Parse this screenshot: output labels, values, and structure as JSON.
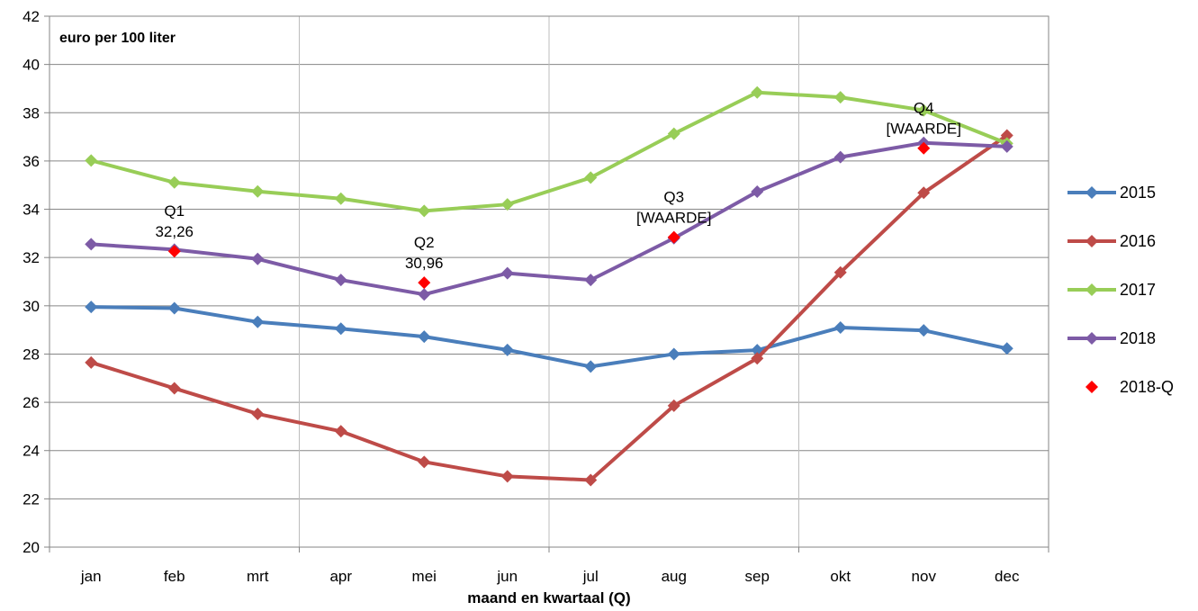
{
  "chart_data": {
    "type": "line",
    "unit_label": "euro per 100 liter",
    "xlabel": "maand en kwartaal (Q)",
    "ylabel": "",
    "ylim": [
      20,
      42
    ],
    "y_ticks": [
      "20",
      "22",
      "24",
      "26",
      "28",
      "30",
      "32",
      "34",
      "36",
      "38",
      "40",
      "42"
    ],
    "categories": [
      "jan",
      "feb",
      "mrt",
      "apr",
      "mei",
      "jun",
      "jul",
      "aug",
      "sep",
      "okt",
      "nov",
      "dec"
    ],
    "grid": "horizontal lines at every tick, vertical lines per quarter",
    "legend_position": "right",
    "series": [
      {
        "name": "2015",
        "color": "#4a7ebb",
        "marker": "diamond",
        "values": [
          29.95,
          29.9,
          29.33,
          29.05,
          28.72,
          28.17,
          27.48,
          28.0,
          28.16,
          29.1,
          28.98,
          28.23
        ]
      },
      {
        "name": "2016",
        "color": "#be4b48",
        "marker": "diamond",
        "values": [
          27.65,
          26.58,
          25.52,
          24.8,
          23.53,
          22.93,
          22.78,
          25.86,
          27.82,
          31.38,
          34.68,
          37.06
        ]
      },
      {
        "name": "2017",
        "color": "#98cd57",
        "marker": "diamond",
        "values": [
          36.02,
          35.11,
          34.74,
          34.44,
          33.93,
          34.2,
          35.31,
          37.13,
          38.84,
          38.64,
          38.1,
          36.73
        ]
      },
      {
        "name": "2018",
        "color": "#7d5ba6",
        "marker": "diamond",
        "values": [
          32.55,
          32.33,
          31.94,
          31.07,
          30.47,
          31.35,
          31.07,
          32.8,
          34.73,
          36.16,
          36.75,
          36.6
        ]
      }
    ],
    "quarter_series": {
      "name": "2018-Q",
      "color": "#ff0000",
      "points": [
        {
          "x": "feb",
          "y": 32.26,
          "label_line1": "Q1",
          "label_line2": "32,26"
        },
        {
          "x": "mei",
          "y": 30.96,
          "label_line1": "Q2",
          "label_line2": "30,96"
        },
        {
          "x": "aug",
          "y": 32.84,
          "label_line1": "Q3",
          "label_line2": "[WAARDE]"
        },
        {
          "x": "nov",
          "y": 36.53,
          "label_line1": "Q4",
          "label_line2": "[WAARDE]"
        }
      ]
    }
  }
}
